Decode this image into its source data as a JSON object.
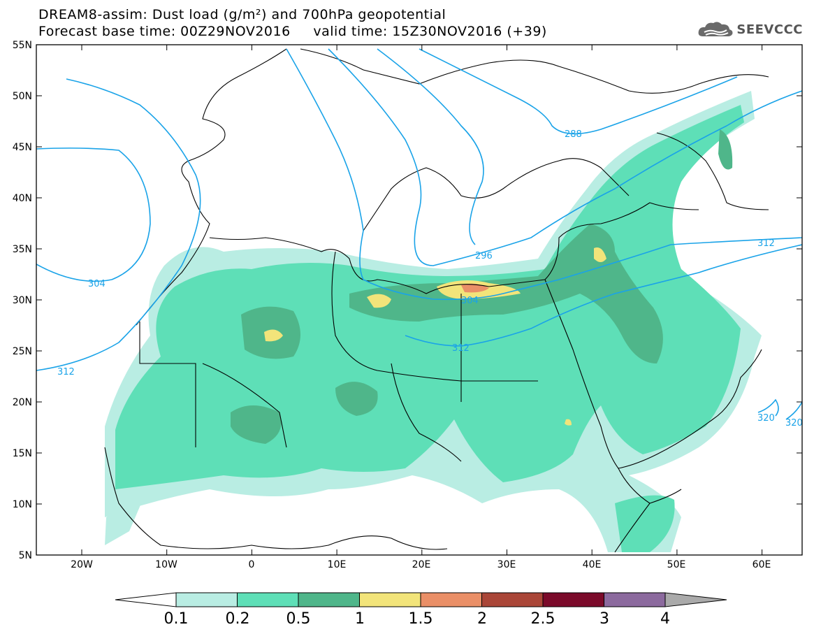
{
  "title": {
    "line1": "DREAM8-assim: Dust load (g/m²) and 700hPa geopotential",
    "line2": "Forecast base time: 00Z29NOV2016     valid time: 15Z30NOV2016 (+39)"
  },
  "logo": {
    "icon": "cloud-icon",
    "text": "SEEVCCC"
  },
  "map": {
    "lat_labels": [
      "55N",
      "50N",
      "45N",
      "40N",
      "35N",
      "30N",
      "25N",
      "20N",
      "15N",
      "10N",
      "5N"
    ],
    "lon_labels": [
      "20W",
      "10W",
      "0",
      "10E",
      "20E",
      "30E",
      "40E",
      "50E",
      "60E"
    ],
    "contour_labels": [
      "304",
      "312",
      "288",
      "296",
      "304",
      "312",
      "312",
      "320",
      "320"
    ]
  },
  "colorbar": {
    "labels": [
      "0.1",
      "0.2",
      "0.5",
      "1",
      "1.5",
      "2",
      "2.5",
      "3",
      "4"
    ],
    "colors": [
      "#b9ede3",
      "#5edfb7",
      "#4fb68a",
      "#f2e47a",
      "#ea8f67",
      "#aa4638",
      "#7b0a2a",
      "#8c6a9e"
    ],
    "over_color": "#aaaaaa",
    "under_color": "#ffffff"
  }
}
